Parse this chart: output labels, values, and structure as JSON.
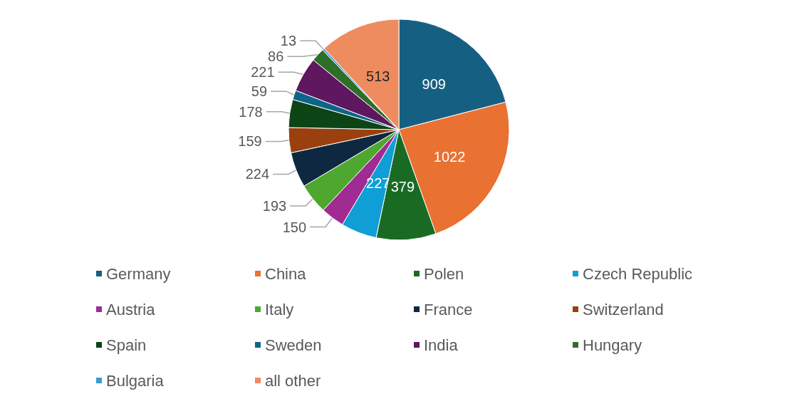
{
  "chart_data": {
    "type": "pie",
    "categories": [
      "Germany",
      "China",
      "Polen",
      "Czech Republic",
      "Austria",
      "Italy",
      "France",
      "Switzerland",
      "Spain",
      "Sweden",
      "India",
      "Hungary",
      "Bulgaria",
      "all other"
    ],
    "values": [
      909,
      1022,
      379,
      227,
      150,
      193,
      224,
      159,
      178,
      59,
      221,
      86,
      13,
      513
    ],
    "colors": [
      "#156082",
      "#e97132",
      "#196b24",
      "#0f9ed5",
      "#a02b93",
      "#4ea72e",
      "#0e2841",
      "#9a400f",
      "#0d4416",
      "#0f6589",
      "#5f1760",
      "#2f6e28",
      "#3b9ad2",
      "#ee8c5f"
    ],
    "data_labels": true,
    "legend": "bottom"
  }
}
